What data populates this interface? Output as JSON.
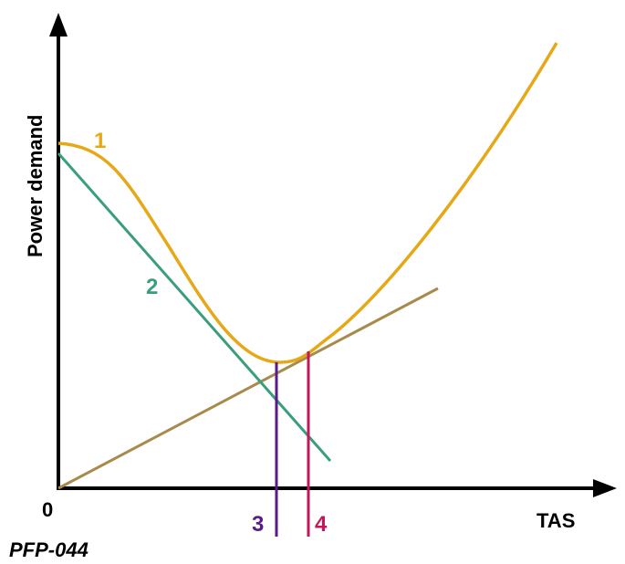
{
  "axes": {
    "y_label": "Power demand",
    "x_label": "TAS",
    "origin_label": "0"
  },
  "curves": {
    "curve_1": {
      "label": "1",
      "color": "#e6a817"
    },
    "line_2": {
      "label": "2",
      "color": "#3a9e7e"
    },
    "tangent_line": {
      "color": "#a88a4c"
    }
  },
  "markers": {
    "marker_3": {
      "label": "3",
      "color": "#5b1a8c"
    },
    "marker_4": {
      "label": "4",
      "color": "#c2185b"
    }
  },
  "caption": "PFP-044"
}
